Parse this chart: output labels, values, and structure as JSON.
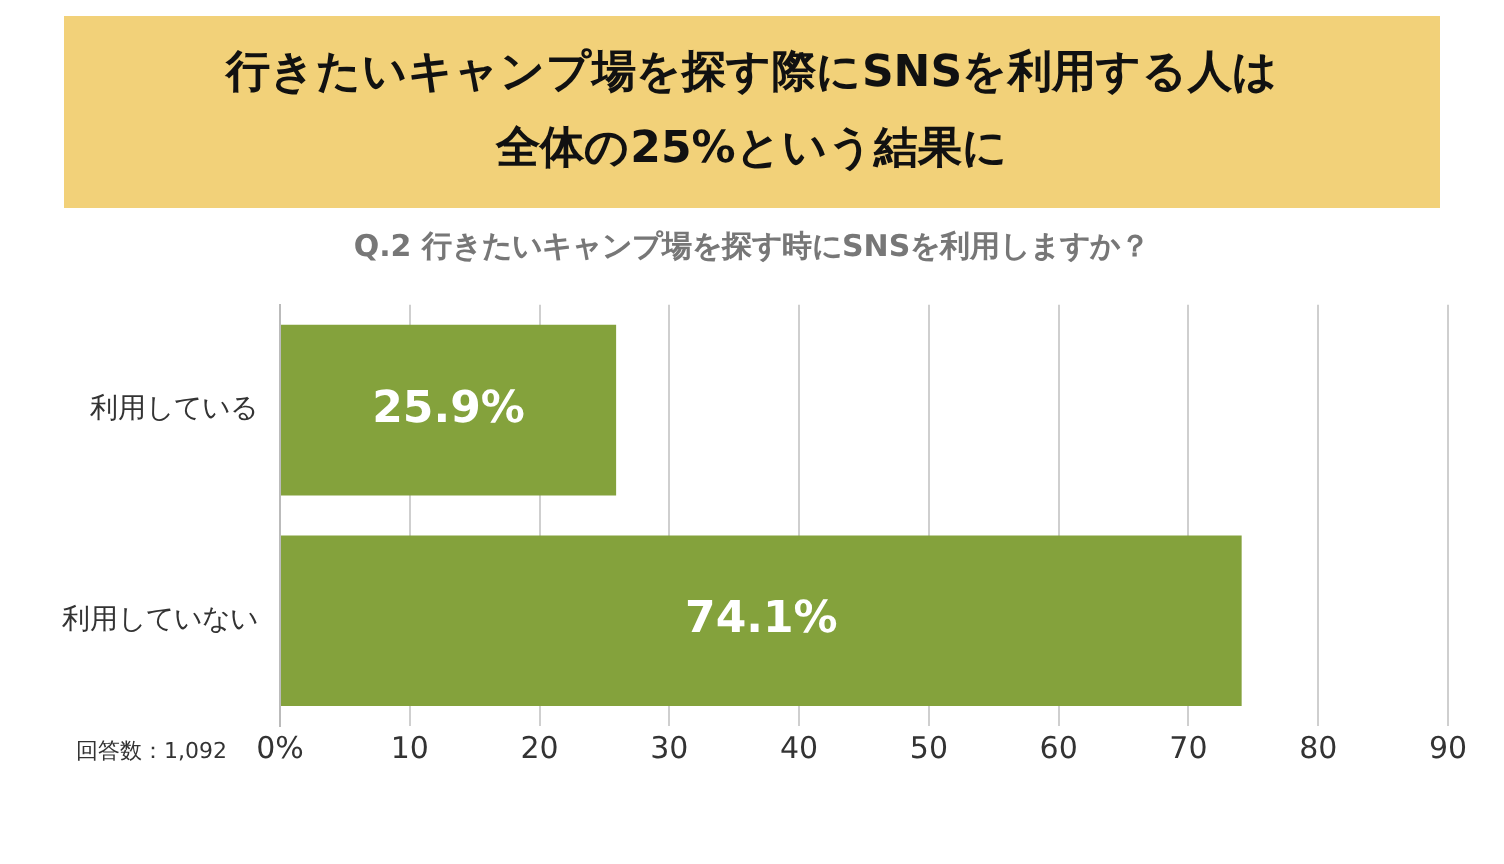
{
  "chart_data": {
    "type": "bar",
    "orientation": "horizontal",
    "title": "行きたいキャンプ場を探す際にSNSを利用する人は全体の25%という結果に",
    "subtitle": "Q.2 行きたいキャンプ場を探す時にSNSを利用しますか？",
    "categories": [
      "利用している",
      "利用していない"
    ],
    "values": [
      25.9,
      74.1
    ],
    "color": "#84a23c",
    "value_labels": [
      "25.9%",
      "74.1%"
    ],
    "xlim": [
      0,
      90
    ],
    "xticks": [
      {
        "value": 0,
        "label": "0%"
      },
      10,
      20,
      30,
      40,
      50,
      60,
      70,
      80,
      90
    ],
    "grid": "x",
    "legend": false,
    "annotations": [
      "回答数：1,092"
    ]
  }
}
